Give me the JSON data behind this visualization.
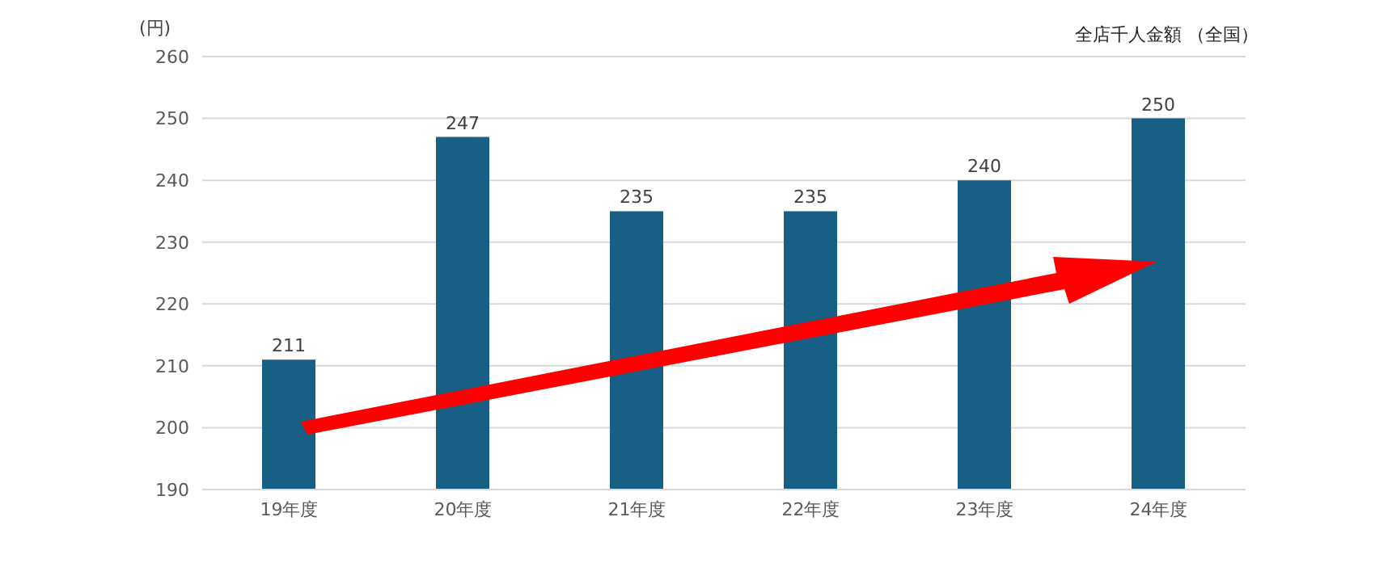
{
  "chart_data": {
    "type": "bar",
    "title": "全店千人金額 （全国）",
    "ylabel": "(円)",
    "categories": [
      "19年度",
      "20年度",
      "21年度",
      "22年度",
      "23年度",
      "24年度"
    ],
    "values": [
      211,
      247,
      235,
      235,
      240,
      250
    ],
    "color": "#175f85",
    "ylim": [
      190,
      260
    ],
    "yticks": [
      190,
      200,
      210,
      220,
      230,
      240,
      250,
      260
    ],
    "grid": "y",
    "data_labels": true
  }
}
